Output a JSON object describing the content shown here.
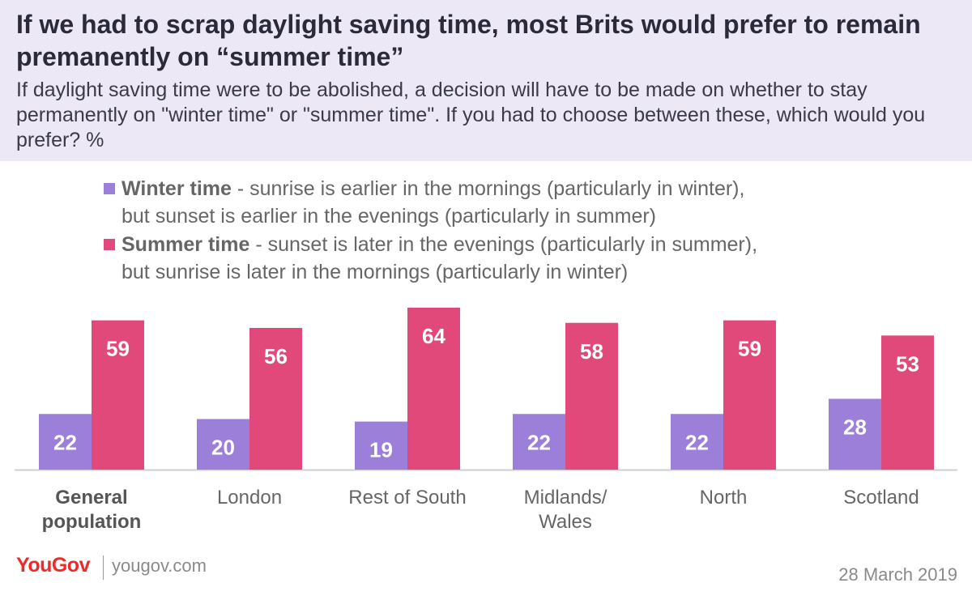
{
  "header": {
    "title": "If we had to scrap daylight saving time, most Brits would prefer to remain premanently on “summer time”",
    "subtitle": "If daylight saving time were to be abolished, a decision will have to be made on whether to stay permanently on \"winter time\" or \"summer time\". If you had to choose between these, which would you prefer? %"
  },
  "legend": {
    "items": [
      {
        "name": "Winter time",
        "desc_line1": " - sunrise is earlier in the mornings (particularly in winter),",
        "desc_line2": "but sunset is earlier in the evenings (particularly in summer)"
      },
      {
        "name": "Summer time",
        "desc_line1": " - sunset is later in the evenings (particularly in summer),",
        "desc_line2": "but sunrise is later in the mornings (particularly in winter)"
      }
    ]
  },
  "chart_data": {
    "type": "bar",
    "categories": [
      [
        "General",
        "population"
      ],
      [
        "London"
      ],
      [
        "Rest of South"
      ],
      [
        "Midlands/",
        "Wales"
      ],
      [
        "North"
      ],
      [
        "Scotland"
      ]
    ],
    "bold_category_index": 0,
    "series": [
      {
        "name": "Winter time",
        "values": [
          22,
          20,
          19,
          22,
          22,
          28
        ],
        "color": "#9b7fd8"
      },
      {
        "name": "Summer time",
        "values": [
          59,
          56,
          64,
          58,
          59,
          53
        ],
        "color": "#e0497a"
      }
    ],
    "ylim": [
      0,
      64
    ],
    "data_labels": true,
    "grid": false,
    "legend_position": "top"
  },
  "footer": {
    "brand_you": "YouGov",
    "site": "yougov.com",
    "date": "28 March 2019"
  },
  "colors": {
    "header_bg": "#ece8f5",
    "winter": "#9b7fd8",
    "summer": "#e0497a",
    "brand": "#ee2a2a"
  }
}
